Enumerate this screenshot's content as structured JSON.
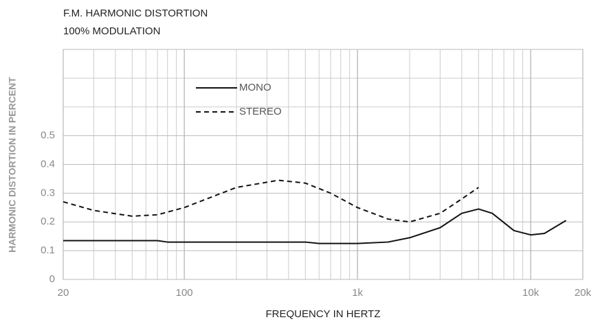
{
  "chart_data": {
    "type": "line",
    "title": "F.M. HARMONIC DISTORTION",
    "subtitle": "100% MODULATION",
    "x_label": "FREQUENCY IN HERTZ",
    "y_label": "HARMONIC DISTORTION IN PERCENT",
    "x_scale": "log",
    "xlim": [
      20,
      20000
    ],
    "xticks": [
      20,
      100,
      {
        "value": 1000,
        "label": "1k"
      },
      {
        "value": 10000,
        "label": "10k"
      },
      {
        "value": 20000,
        "label": "20k"
      }
    ],
    "ylim": [
      0,
      0.8
    ],
    "yticks": [
      0,
      0.1,
      0.2,
      0.3,
      0.4,
      0.5
    ],
    "grid": true,
    "series": [
      {
        "name": "MONO",
        "color": "#111111",
        "dash": "solid",
        "x": [
          20,
          70,
          80,
          500,
          600,
          1000,
          1500,
          2000,
          3000,
          4000,
          5000,
          6000,
          8000,
          10000,
          12000,
          16000
        ],
        "values": [
          0.135,
          0.135,
          0.13,
          0.13,
          0.125,
          0.125,
          0.13,
          0.145,
          0.18,
          0.23,
          0.245,
          0.23,
          0.17,
          0.155,
          0.16,
          0.205
        ]
      },
      {
        "name": "STEREO",
        "color": "#111111",
        "dash": "dashed",
        "x": [
          20,
          30,
          50,
          70,
          100,
          200,
          350,
          500,
          700,
          1000,
          1500,
          2000,
          3000,
          4000,
          5000
        ],
        "values": [
          0.27,
          0.24,
          0.22,
          0.225,
          0.25,
          0.32,
          0.345,
          0.335,
          0.3,
          0.25,
          0.21,
          0.2,
          0.23,
          0.28,
          0.32
        ]
      }
    ]
  }
}
